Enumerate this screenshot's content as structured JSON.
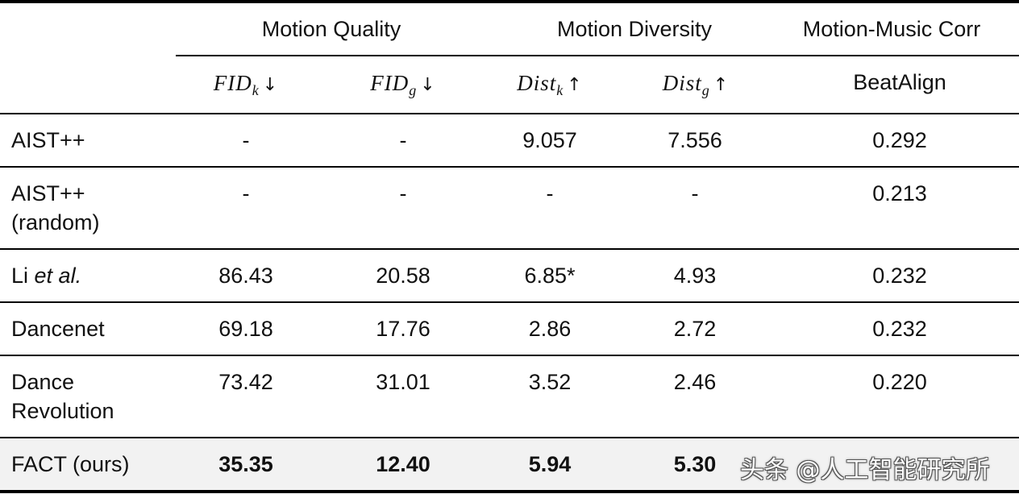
{
  "header": {
    "groups": {
      "quality": "Motion Quality",
      "diversity": "Motion Diversity",
      "corr": "Motion-Music Corr"
    },
    "metrics": {
      "fid_k": {
        "main": "FID",
        "sub": "k",
        "arrow": "↓"
      },
      "fid_g": {
        "main": "FID",
        "sub": "g",
        "arrow": "↓"
      },
      "dist_k": {
        "main": "Dist",
        "sub": "k",
        "arrow": "↑"
      },
      "dist_g": {
        "main": "Dist",
        "sub": "g",
        "arrow": "↑"
      },
      "beat": "BeatAlign"
    }
  },
  "rows": [
    {
      "method_l1": "AIST++",
      "method_l2": "",
      "fid_k": "-",
      "fid_g": "-",
      "dist_k": "9.057",
      "dist_g": "7.556",
      "beat": "0.292"
    },
    {
      "method_l1": "AIST++",
      "method_l2": "(random)",
      "fid_k": "-",
      "fid_g": "-",
      "dist_k": "-",
      "dist_g": "-",
      "beat": "0.213"
    },
    {
      "method_l1": "Li ",
      "method_em": "et al.",
      "fid_k": "86.43",
      "fid_g": "20.58",
      "dist_k": "6.85*",
      "dist_g": "4.93",
      "beat": "0.232"
    },
    {
      "method_l1": "Dancenet",
      "method_l2": "",
      "fid_k": "69.18",
      "fid_g": "17.76",
      "dist_k": "2.86",
      "dist_g": "2.72",
      "beat": "0.232"
    },
    {
      "method_l1": "Dance",
      "method_l2": "Revolution",
      "fid_k": "73.42",
      "fid_g": "31.01",
      "dist_k": "3.52",
      "dist_g": "2.46",
      "beat": "0.220"
    },
    {
      "method_l1": "FACT (ours)",
      "method_l2": "",
      "fid_k": "35.35",
      "fid_g": "12.40",
      "dist_k": "5.94",
      "dist_g": "5.30",
      "beat": ""
    }
  ],
  "watermark": "头条 @人工智能研究所"
}
